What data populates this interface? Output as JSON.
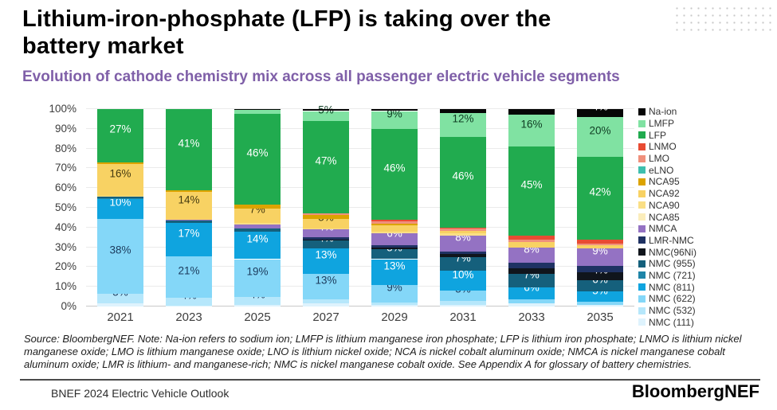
{
  "header": {
    "title": "Lithium-iron-phosphate (LFP) is taking over the battery market",
    "subtitle": "Evolution of cathode chemistry mix across all passenger electric vehicle segments"
  },
  "chart_data": {
    "type": "bar",
    "variant": "stacked-100-percent",
    "title": "",
    "xlabel": "",
    "ylabel": "",
    "ylim": [
      0,
      100
    ],
    "grid": true,
    "legend_position": "right",
    "y_ticks": [
      "0%",
      "10%",
      "20%",
      "30%",
      "40%",
      "50%",
      "60%",
      "70%",
      "80%",
      "90%",
      "100%"
    ],
    "categories": [
      "2021",
      "2023",
      "2025",
      "2027",
      "2029",
      "2031",
      "2033",
      "2035"
    ],
    "label_min_value": 4,
    "series": [
      {
        "key": "nmc111",
        "name": "NMC (111)",
        "color": "#DEF3FD",
        "label_color": "#1b3a5c",
        "values": [
          1.5,
          0.5,
          1,
          1.5,
          1,
          1,
          1.5,
          1
        ]
      },
      {
        "key": "nmc532",
        "name": "NMC (532)",
        "color": "#B6E7FB",
        "label_color": "#1b3a5c",
        "values": [
          5,
          4,
          4,
          2,
          1,
          2,
          0,
          0
        ]
      },
      {
        "key": "nmc622",
        "name": "NMC (622)",
        "color": "#84D7F8",
        "label_color": "#1b3a5c",
        "values": [
          38,
          21,
          19,
          13,
          9,
          5,
          2,
          1.5
        ]
      },
      {
        "key": "nmc811",
        "name": "NMC (811)",
        "color": "#0FA4DF",
        "label_color": "#ffffff",
        "values": [
          10,
          17,
          14,
          13,
          13,
          10,
          6,
          5
        ]
      },
      {
        "key": "nmc721",
        "name": "NMC (721)",
        "color": "#1F85A8",
        "label_color": "#ffffff",
        "values": [
          0.5,
          0,
          0,
          0,
          0,
          0,
          0,
          0
        ]
      },
      {
        "key": "nmc955",
        "name": "NMC (955)",
        "color": "#15607C",
        "label_color": "#ffffff",
        "values": [
          0.5,
          1,
          1.5,
          4,
          5,
          7,
          7,
          6
        ]
      },
      {
        "key": "nmc96ni",
        "name": "NMC(96Ni)",
        "color": "#10151C",
        "label_color": "#ffffff",
        "values": [
          0,
          0,
          0,
          0.5,
          1,
          1.5,
          3,
          4
        ]
      },
      {
        "key": "lmrnmc",
        "name": "LMR-NMC",
        "color": "#1F3263",
        "label_color": "#ffffff",
        "values": [
          0,
          0,
          0,
          1,
          1,
          1.5,
          2.5,
          3
        ]
      },
      {
        "key": "nmca",
        "name": "NMCA",
        "color": "#9472C3",
        "label_color": "#ffffff",
        "values": [
          0,
          0.5,
          2,
          4,
          6,
          8,
          8,
          9
        ]
      },
      {
        "key": "nca85",
        "name": "NCA85",
        "color": "#FBEDBB",
        "label_color": "#453a10",
        "values": [
          0,
          0,
          0,
          0,
          0,
          0,
          0,
          0
        ]
      },
      {
        "key": "nca90",
        "name": "NCA90",
        "color": "#FADF85",
        "label_color": "#453a10",
        "values": [
          0.5,
          0,
          1,
          0.5,
          1,
          1,
          0,
          0
        ]
      },
      {
        "key": "nca92",
        "name": "NCA92",
        "color": "#F8D263",
        "label_color": "#453a10",
        "values": [
          16,
          14,
          7,
          5,
          3,
          1.5,
          2.5,
          1.5
        ]
      },
      {
        "key": "nca95",
        "name": "NCA95",
        "color": "#DCA300",
        "label_color": "#453a10",
        "values": [
          1,
          1,
          2,
          2,
          1,
          0,
          0,
          0
        ]
      },
      {
        "key": "elno",
        "name": "eLNO",
        "color": "#3EBFAE",
        "label_color": "#0f3d23",
        "values": [
          0,
          0,
          0,
          0,
          0,
          0,
          0,
          0
        ]
      },
      {
        "key": "lmo",
        "name": "LMO",
        "color": "#F0907C",
        "label_color": "#3f1f14",
        "values": [
          0,
          0,
          0,
          0.5,
          1,
          1,
          1.5,
          1
        ]
      },
      {
        "key": "lnmo",
        "name": "LNMO",
        "color": "#E84B33",
        "label_color": "#ffffff",
        "values": [
          0,
          0,
          0,
          0,
          1,
          0.5,
          2,
          2
        ]
      },
      {
        "key": "lfp",
        "name": "LFP",
        "color": "#21AB4F",
        "label_color": "#ffffff",
        "values": [
          27,
          41,
          46,
          47,
          46,
          46,
          45,
          42
        ]
      },
      {
        "key": "lmfp",
        "name": "LMFP",
        "color": "#80E2A2",
        "label_color": "#0f3d23",
        "values": [
          0,
          0,
          2,
          5,
          9,
          12,
          16,
          20
        ]
      },
      {
        "key": "naion",
        "name": "Na-ion",
        "color": "#060606",
        "label_color": "#ffffff",
        "values": [
          0,
          0,
          0.5,
          1,
          1,
          2,
          3,
          4
        ]
      }
    ]
  },
  "source_note": "Source: BloombergNEF. Note: Na-ion refers to sodium ion; LMFP is lithium manganese iron phosphate; LFP is lithium iron phosphate; LNMO is lithium nickel manganese oxide; LMO is lithium manganese oxide; LNO is lithium nickel oxide; NCA is nickel cobalt aluminum oxide; NMCA is nickel manganese cobalt aluminum oxide; LMR is lithium- and manganese-rich; NMC is nickel manganese cobalt oxide. See Appendix A for glossary of battery chemistries.",
  "footer": {
    "report": "BNEF 2024 Electric Vehicle Outlook",
    "logo": "BloombergNEF"
  }
}
